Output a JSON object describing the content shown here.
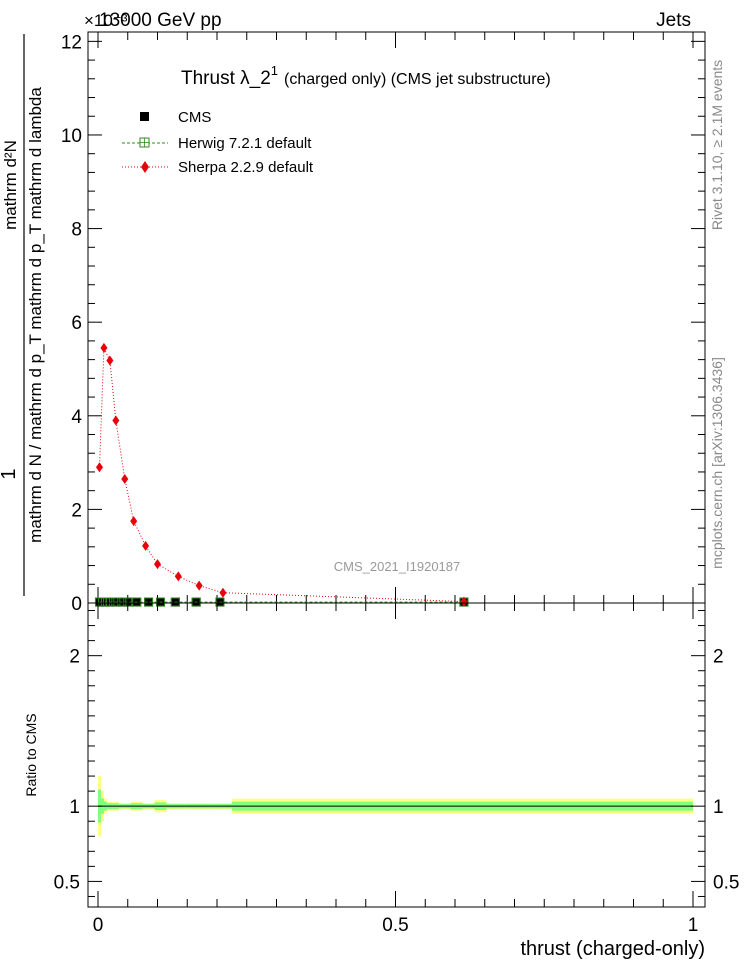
{
  "header": {
    "energy_label": "13000 GeV pp",
    "process_label": "Jets",
    "exponent_label": "×10⁻³"
  },
  "side_labels": {
    "rivet": "Rivet 3.1.10, ≥ 2.1M events",
    "mcplots": "mcplots.cern.ch [arXiv:1306.3436]"
  },
  "chart_data": [
    {
      "type": "line",
      "title": "Thrust λ_2¹ (charged only) (CMS jet substructure)",
      "title_main": "Thrust λ_2",
      "title_sup": "1",
      "title_tail": "(charged only) (CMS jet substructure)",
      "analysis_label": "CMS_2021_I1920187",
      "ylabel_numerator": "1",
      "ylabel_denominator": "mathrm d N / mathrm d p_T mathrm d p_T mathrm d lambda",
      "ylabel_top": "mathrm d²N",
      "xlabel": "thrust (charged-only)",
      "xlim": [
        0,
        1
      ],
      "ylim": [
        0,
        0.0122
      ],
      "y_scale_exponent": -3,
      "y_ticks": [
        0,
        2,
        4,
        6,
        8,
        10,
        12
      ],
      "x_ticks": [
        "0",
        "0.5",
        "1"
      ],
      "legend_position": "top-left",
      "series": [
        {
          "name": "CMS",
          "color": "#000000",
          "marker": "square",
          "x": [
            0.0025,
            0.0075,
            0.0125,
            0.02,
            0.03,
            0.04,
            0.05,
            0.065,
            0.085,
            0.105,
            0.13,
            0.165,
            0.205,
            0.615
          ],
          "y": [
            2e-05,
            2e-05,
            2e-05,
            2e-05,
            2e-05,
            2e-05,
            2e-05,
            2e-05,
            2e-05,
            2e-05,
            2e-05,
            2e-05,
            2e-05,
            2e-05
          ]
        },
        {
          "name": "Herwig 7.2.1 default",
          "color": "#2e8b1e",
          "marker": "open-square",
          "x": [
            0.0025,
            0.0075,
            0.0125,
            0.02,
            0.03,
            0.04,
            0.05,
            0.065,
            0.085,
            0.105,
            0.13,
            0.165,
            0.205,
            0.615
          ],
          "y": [
            2e-05,
            2e-05,
            2e-05,
            2e-05,
            2e-05,
            2e-05,
            2e-05,
            2e-05,
            2e-05,
            2e-05,
            2e-05,
            2e-05,
            2e-05,
            2e-05
          ]
        },
        {
          "name": "Sherpa 2.2.9 default",
          "color": "#e8000b",
          "marker": "diamond",
          "x": [
            0.0025,
            0.01,
            0.02,
            0.03,
            0.045,
            0.06,
            0.08,
            0.1,
            0.135,
            0.17,
            0.21,
            0.615
          ],
          "y": [
            0.0029,
            0.00545,
            0.00518,
            0.0039,
            0.00265,
            0.00175,
            0.00122,
            0.00083,
            0.00057,
            0.00037,
            0.00022,
            3e-05
          ]
        }
      ]
    },
    {
      "type": "area",
      "ylabel": "Ratio to CMS",
      "xlabel": "thrust (charged-only)",
      "xlim": [
        0,
        1
      ],
      "ylim": [
        0.33,
        2.35
      ],
      "y_ticks": [
        "0.5",
        "1",
        "2"
      ],
      "reference": 1,
      "bands": {
        "outer_color": "#ffff80",
        "inner_color": "#80ff80",
        "edges": [
          0,
          0.005,
          0.01,
          0.015,
          0.025,
          0.035,
          0.045,
          0.055,
          0.075,
          0.095,
          0.115,
          0.145,
          0.185,
          0.225,
          1.0
        ],
        "inner_half_width": [
          0.11,
          0.05,
          0.03,
          0.02,
          0.02,
          0.015,
          0.015,
          0.02,
          0.015,
          0.025,
          0.015,
          0.015,
          0.015,
          0.03
        ],
        "outer_half_width": [
          0.2,
          0.1,
          0.05,
          0.03,
          0.03,
          0.02,
          0.02,
          0.03,
          0.02,
          0.04,
          0.02,
          0.02,
          0.02,
          0.05
        ]
      }
    }
  ]
}
